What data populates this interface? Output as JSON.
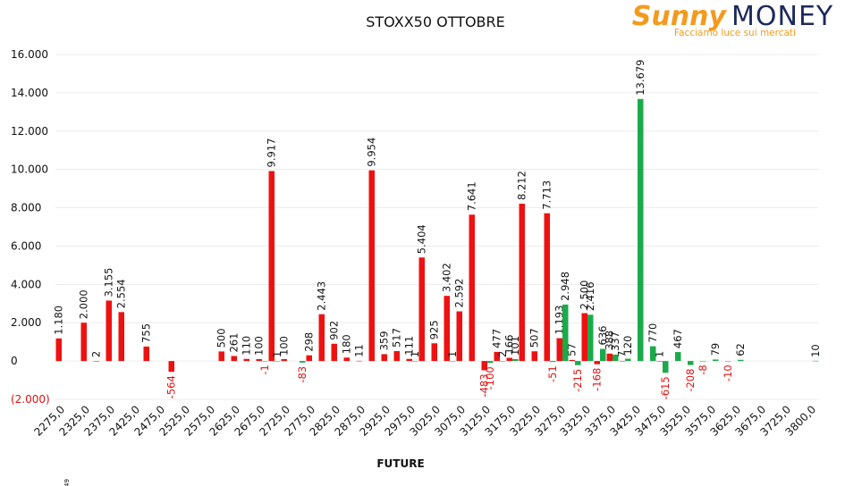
{
  "logo": {
    "brand1": "Sunny",
    "brand2": "MONEY",
    "tagline": "Facciamo luce sui mercati"
  },
  "footnote": "49",
  "chart_data": {
    "type": "bar",
    "title": "STOXX50 OTTOBRE",
    "x_label": "FUTURE",
    "categories": [
      "2275,0",
      null,
      "2325,0",
      null,
      "2375,0",
      null,
      "2425,0",
      null,
      "2475,0",
      null,
      "2525,0",
      null,
      "2575,0",
      null,
      "2625,0",
      null,
      "2675,0",
      null,
      "2725,0",
      null,
      "2775,0",
      null,
      "2825,0",
      null,
      "2875,0",
      null,
      "2925,0",
      null,
      "2975,0",
      null,
      "3025,0",
      null,
      "3075,0",
      null,
      "3125,0",
      null,
      "3175,0",
      null,
      "3225,0",
      null,
      "3275,0",
      null,
      "3325,0",
      null,
      "3375,0",
      null,
      "3425,0",
      null,
      "3475,0",
      null,
      "3525,0",
      null,
      "3575,0",
      null,
      "3625,0",
      null,
      "3675,0",
      null,
      "3725,0",
      null,
      "3800,0"
    ],
    "series": [
      {
        "color": "#ee1111",
        "values": [
          1180,
          null,
          2000,
          2,
          3155,
          2554,
          null,
          755,
          null,
          -564,
          null,
          null,
          null,
          500,
          261,
          110,
          100,
          9917,
          100,
          null,
          298,
          2443,
          902,
          180,
          11,
          9954,
          359,
          517,
          111,
          5404,
          925,
          3402,
          2592,
          7641,
          -483,
          477,
          166,
          8212,
          507,
          7713,
          1193,
          57,
          2500,
          -168,
          388,
          7,
          null,
          null,
          1,
          null,
          null,
          null,
          null,
          null,
          null,
          null,
          null,
          null,
          null,
          null,
          null
        ],
        "value_labels": [
          "1.180",
          null,
          "2.000",
          "2",
          "3.155",
          "2.554",
          null,
          "755",
          null,
          "-564",
          null,
          null,
          null,
          "500",
          "261",
          "110",
          "100",
          "9.917",
          "100",
          null,
          "298",
          "2.443",
          "902",
          "180",
          "11",
          "9.954",
          "359",
          "517",
          "111",
          "5.404",
          "925",
          "3.402",
          "2.592",
          "7.641",
          "-483",
          "477",
          "166",
          "8.212",
          "507",
          "7.713",
          "1.193",
          "57",
          "2.500",
          "-168",
          "388",
          "7",
          null,
          null,
          "1",
          null,
          null,
          null,
          null,
          null,
          null,
          null,
          null,
          null,
          null,
          null,
          null
        ]
      },
      {
        "color": "#1aaa4a",
        "values": [
          null,
          null,
          null,
          null,
          null,
          null,
          null,
          null,
          null,
          null,
          null,
          null,
          null,
          null,
          null,
          null,
          -1,
          1,
          null,
          -83,
          null,
          null,
          null,
          null,
          null,
          null,
          null,
          null,
          1,
          null,
          null,
          1,
          null,
          null,
          -100,
          2,
          101,
          null,
          null,
          -51,
          2948,
          -215,
          2416,
          636,
          337,
          120,
          13679,
          770,
          -615,
          467,
          -208,
          -8,
          79,
          -10,
          62,
          null,
          null,
          null,
          null,
          null,
          10
        ],
        "value_labels": [
          null,
          null,
          null,
          null,
          null,
          null,
          null,
          null,
          null,
          null,
          null,
          null,
          null,
          null,
          null,
          null,
          "-1",
          "1",
          null,
          "-83",
          null,
          null,
          null,
          null,
          null,
          null,
          null,
          null,
          "1",
          null,
          null,
          "1",
          null,
          null,
          "-100",
          "2",
          "101",
          null,
          null,
          "-51",
          "2.948",
          "-215",
          "2.416",
          "636",
          "337",
          "120",
          "13.679",
          "770",
          "-615",
          "467",
          "-208",
          "-8",
          "79",
          "-10",
          "62",
          null,
          null,
          null,
          null,
          null,
          "10"
        ]
      }
    ],
    "ylim": [
      -2000,
      16000
    ],
    "yticks": [
      {
        "value": -2000,
        "label": "(2.000)"
      },
      0,
      {
        "value": 2000,
        "label": "2.000"
      },
      {
        "value": 4000,
        "label": "4.000"
      },
      {
        "value": 6000,
        "label": "6.000"
      },
      {
        "value": 8000,
        "label": "8.000"
      },
      {
        "value": 10000,
        "label": "10.000"
      },
      {
        "value": 12000,
        "label": "12.000"
      },
      {
        "value": 14000,
        "label": "14.000"
      },
      {
        "value": 16000,
        "label": "16.000"
      }
    ],
    "grid": true
  }
}
